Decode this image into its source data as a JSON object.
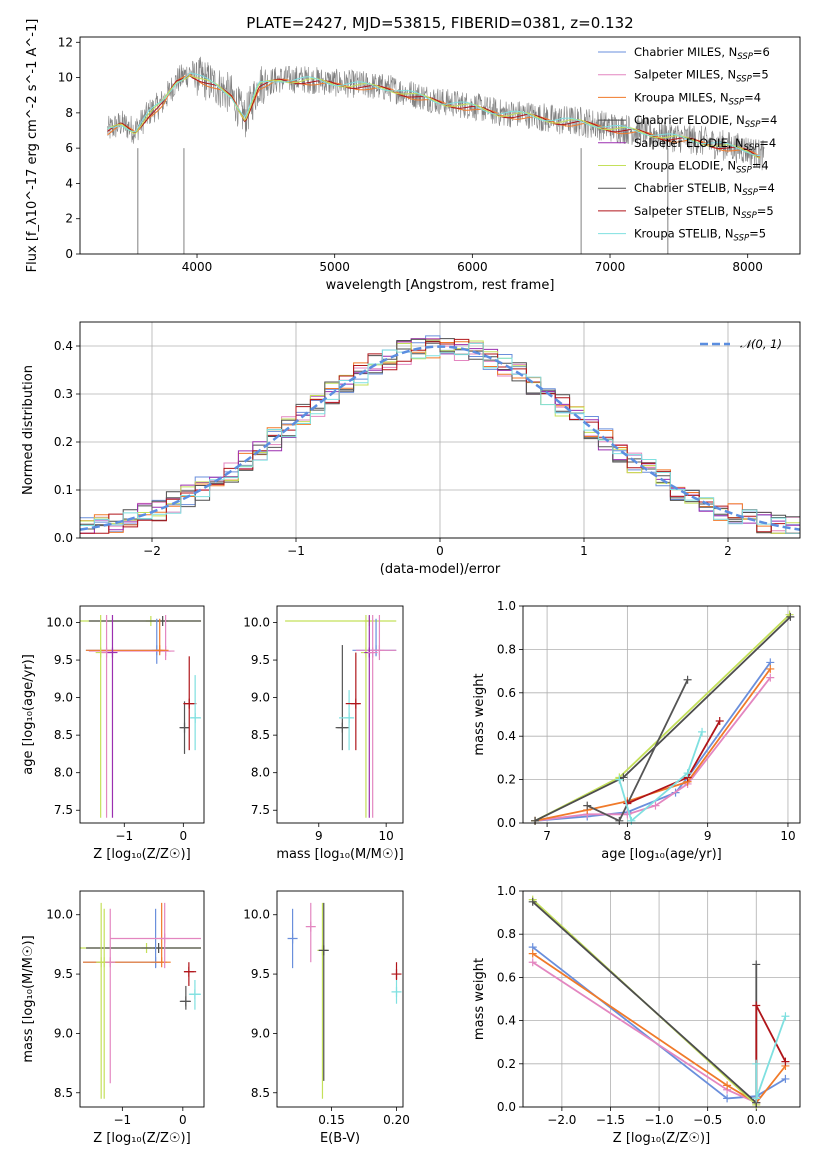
{
  "colors": {
    "chabrier_miles": "#6a8fdc",
    "salpeter_miles": "#e386c0",
    "kroupa_miles": "#f07a2a",
    "chabrier_elodie": "#4d4d4d",
    "salpeter_elodie": "#9b2fb0",
    "kroupa_elodie": "#c4e05a",
    "chabrier_stelib": "#555555",
    "salpeter_stelib": "#b0151a",
    "kroupa_stelib": "#7fe0e0",
    "data_spectrum": "#808080",
    "normal_curve": "#5b8ee0",
    "grid": "#b0b0b0"
  },
  "chart_data": [
    {
      "id": "spectrum",
      "type": "line",
      "title": "PLATE=2427, MJD=53815, FIBERID=0381, z=0.132",
      "xlabel": "wavelength [Angstrom, rest frame]",
      "ylabel": "Flux [f_λ10^-17 erg cm^-2 s^-1 A^-1]",
      "xlim": [
        3150,
        8380
      ],
      "ylim": [
        0,
        12.3
      ],
      "xticks": [
        4000,
        5000,
        6000,
        7000,
        8000
      ],
      "yticks": [
        0,
        2,
        4,
        6,
        8,
        10,
        12
      ],
      "grid": false,
      "legend_position": "top-right",
      "legend": [
        {
          "base": "Chabrier MILES, N",
          "sub": "SSP",
          "tail": "=6",
          "color_key": "chabrier_miles"
        },
        {
          "base": "Salpeter MILES, N",
          "sub": "SSP",
          "tail": "=5",
          "color_key": "salpeter_miles"
        },
        {
          "base": "Kroupa MILES, N",
          "sub": "SSP",
          "tail": "=4",
          "color_key": "kroupa_miles"
        },
        {
          "base": "Chabrier ELODIE, N",
          "sub": "SSP",
          "tail": "=4",
          "color_key": "chabrier_elodie"
        },
        {
          "base": "Salpeter ELODIE, N",
          "sub": "SSP",
          "tail": "=4",
          "color_key": "salpeter_elodie"
        },
        {
          "base": "Kroupa ELODIE, N",
          "sub": "SSP",
          "tail": "=4",
          "color_key": "kroupa_elodie"
        },
        {
          "base": "Chabrier STELIB, N",
          "sub": "SSP",
          "tail": "=4",
          "color_key": "chabrier_stelib"
        },
        {
          "base": "Salpeter STELIB, N",
          "sub": "SSP",
          "tail": "=5",
          "color_key": "salpeter_stelib"
        },
        {
          "base": "Kroupa STELIB, N",
          "sub": "SSP",
          "tail": "=5",
          "color_key": "kroupa_stelib"
        }
      ],
      "data_envelope": {
        "x": [
          3350,
          3450,
          3550,
          3650,
          3750,
          3850,
          3950,
          4050,
          4150,
          4250,
          4350,
          4450,
          4600,
          4800,
          5000,
          5200,
          5400,
          5600,
          5800,
          6000,
          6200,
          6400,
          6600,
          6800,
          7000,
          7200,
          7400,
          7600,
          7800,
          8000,
          8100
        ],
        "y": [
          7.0,
          7.4,
          7.0,
          8.0,
          8.6,
          9.8,
          10.3,
          9.9,
          9.5,
          9.0,
          7.7,
          9.6,
          9.9,
          9.9,
          9.7,
          9.6,
          9.4,
          9.0,
          8.6,
          8.4,
          8.0,
          7.9,
          7.6,
          7.5,
          7.2,
          7.0,
          6.7,
          6.5,
          6.2,
          5.9,
          5.6
        ]
      }
    },
    {
      "id": "residual-histogram",
      "type": "bar",
      "xlabel": "(data-model)/error",
      "ylabel": "Normed distribution",
      "xlim": [
        -2.5,
        2.5
      ],
      "ylim": [
        0,
        0.45
      ],
      "xticks": [
        -2,
        -1,
        0,
        1,
        2
      ],
      "yticks": [
        0.0,
        0.1,
        0.2,
        0.3,
        0.4
      ],
      "grid": true,
      "legend_position": "top-right",
      "legend": [
        {
          "label": "𝒩(0, 1)",
          "style": "dashed",
          "color_key": "normal_curve"
        }
      ],
      "bin_width": 0.1,
      "normal_curve": {
        "mean": 0,
        "sigma": 1
      }
    },
    {
      "id": "age-vs-z",
      "type": "scatter",
      "xlabel": "Z [log₁₀(Z/Z☉)]",
      "ylabel": "age  [log₁₀(age/yr)]",
      "xlim": [
        -1.75,
        0.35
      ],
      "ylim": [
        7.33,
        10.22
      ],
      "xticks": [
        -1,
        0
      ],
      "yticks": [
        7.5,
        8.0,
        8.5,
        9.0,
        9.5,
        10.0
      ],
      "grid": false,
      "points": [
        {
          "x": -0.55,
          "y": 10.02,
          "xlo": -1.75,
          "xhi": 0.3,
          "ylo": 10.02,
          "yhi": 10.02,
          "color_key": "kroupa_elodie"
        },
        {
          "x": -0.35,
          "y": 10.02,
          "xlo": -1.6,
          "xhi": 0.3,
          "ylo": 10.02,
          "yhi": 10.02,
          "color_key": "chabrier_elodie"
        },
        {
          "x": -0.45,
          "y": 9.63,
          "xlo": -1.65,
          "xhi": -0.35,
          "ylo": 9.45,
          "yhi": 10.05,
          "color_key": "chabrier_miles"
        },
        {
          "x": -0.3,
          "y": 9.62,
          "xlo": -1.6,
          "xhi": -0.15,
          "ylo": 9.5,
          "yhi": 10.1,
          "color_key": "salpeter_miles"
        },
        {
          "x": -0.4,
          "y": 9.63,
          "xlo": -1.65,
          "xhi": -0.25,
          "ylo": 9.6,
          "yhi": 10.05,
          "color_key": "kroupa_miles"
        },
        {
          "x": -1.4,
          "y": 9.6,
          "xlo": -1.4,
          "xhi": -1.4,
          "ylo": 7.4,
          "yhi": 10.1,
          "color_key": "kroupa_elodie"
        },
        {
          "x": -1.3,
          "y": 9.6,
          "xlo": -1.3,
          "xhi": -1.3,
          "ylo": 7.4,
          "yhi": 10.1,
          "color_key": "salpeter_miles"
        },
        {
          "x": -1.2,
          "y": 9.6,
          "xlo": -1.2,
          "xhi": -1.2,
          "ylo": 7.4,
          "yhi": 10.1,
          "color_key": "salpeter_elodie"
        },
        {
          "x": 0.02,
          "y": 8.6,
          "xlo": -0.05,
          "xhi": 0.1,
          "ylo": 8.25,
          "yhi": 8.95,
          "color_key": "chabrier_stelib"
        },
        {
          "x": 0.1,
          "y": 8.92,
          "xlo": 0.0,
          "xhi": 0.22,
          "ylo": 8.3,
          "yhi": 9.55,
          "color_key": "salpeter_stelib"
        },
        {
          "x": 0.2,
          "y": 8.73,
          "xlo": 0.12,
          "xhi": 0.3,
          "ylo": 8.3,
          "yhi": 9.3,
          "color_key": "kroupa_stelib"
        }
      ]
    },
    {
      "id": "age-vs-mass",
      "type": "scatter",
      "xlabel": "mass [log₁₀(M/M☉)]",
      "ylabel": "",
      "xlim": [
        8.38,
        10.25
      ],
      "ylim": [
        7.33,
        10.22
      ],
      "xticks": [
        9,
        10
      ],
      "yticks": [
        7.5,
        8.0,
        8.5,
        9.0,
        9.5,
        10.0
      ],
      "grid": false,
      "points": [
        {
          "x": 9.75,
          "y": 10.02,
          "xlo": 8.5,
          "xhi": 10.15,
          "ylo": 10.02,
          "yhi": 10.02,
          "color_key": "kroupa_elodie"
        },
        {
          "x": 9.85,
          "y": 9.63,
          "xlo": 9.5,
          "xhi": 10.15,
          "ylo": 9.55,
          "yhi": 10.05,
          "color_key": "chabrier_miles"
        },
        {
          "x": 9.9,
          "y": 9.63,
          "xlo": 9.55,
          "xhi": 10.15,
          "ylo": 9.5,
          "yhi": 10.1,
          "color_key": "salpeter_miles"
        },
        {
          "x": 9.35,
          "y": 8.6,
          "xlo": 9.25,
          "xhi": 9.45,
          "ylo": 8.3,
          "yhi": 9.7,
          "color_key": "chabrier_stelib"
        },
        {
          "x": 9.45,
          "y": 8.73,
          "xlo": 9.3,
          "xhi": 9.5,
          "ylo": 8.3,
          "yhi": 9.1,
          "color_key": "kroupa_stelib"
        },
        {
          "x": 9.55,
          "y": 8.92,
          "xlo": 9.4,
          "xhi": 9.6,
          "ylo": 8.3,
          "yhi": 9.6,
          "color_key": "salpeter_stelib"
        },
        {
          "x": 9.7,
          "y": 9.6,
          "xlo": 9.7,
          "xhi": 9.7,
          "ylo": 7.4,
          "yhi": 10.1,
          "color_key": "kroupa_elodie"
        },
        {
          "x": 9.75,
          "y": 9.6,
          "xlo": 9.75,
          "xhi": 9.75,
          "ylo": 7.4,
          "yhi": 10.1,
          "color_key": "salpeter_elodie"
        },
        {
          "x": 9.8,
          "y": 9.6,
          "xlo": 9.8,
          "xhi": 9.8,
          "ylo": 7.4,
          "yhi": 10.1,
          "color_key": "salpeter_miles"
        }
      ]
    },
    {
      "id": "weight-vs-age",
      "type": "line",
      "xlabel": "age  [log₁₀(age/yr)]",
      "ylabel": "mass weight",
      "xlim": [
        6.7,
        10.15
      ],
      "ylim": [
        0,
        1.0
      ],
      "xticks": [
        7,
        8,
        9,
        10
      ],
      "yticks": [
        0.0,
        0.2,
        0.4,
        0.6,
        0.8,
        1.0
      ],
      "grid": true,
      "series": [
        {
          "color_key": "chabrier_miles",
          "x": [
            6.85,
            7.5,
            8.0,
            8.6,
            8.75,
            9.78
          ],
          "y": [
            0.01,
            0.03,
            0.05,
            0.14,
            0.21,
            0.74
          ]
        },
        {
          "color_key": "salpeter_miles",
          "x": [
            6.85,
            7.5,
            8.0,
            8.35,
            8.75,
            9.78
          ],
          "y": [
            0.01,
            0.04,
            0.04,
            0.08,
            0.18,
            0.67
          ]
        },
        {
          "color_key": "kroupa_miles",
          "x": [
            6.85,
            7.5,
            8.0,
            8.75,
            9.78
          ],
          "y": [
            0.01,
            0.06,
            0.1,
            0.19,
            0.71
          ]
        },
        {
          "color_key": "kroupa_elodie",
          "x": [
            6.85,
            7.9,
            10.02
          ],
          "y": [
            0.01,
            0.21,
            0.96
          ]
        },
        {
          "color_key": "chabrier_elodie",
          "x": [
            6.85,
            7.95,
            10.03
          ],
          "y": [
            0.01,
            0.21,
            0.95
          ]
        },
        {
          "color_key": "chabrier_stelib",
          "x": [
            7.5,
            7.9,
            8.75
          ],
          "y": [
            0.08,
            0.01,
            0.66
          ]
        },
        {
          "color_key": "salpeter_stelib",
          "x": [
            8.0,
            8.75,
            9.15
          ],
          "y": [
            0.09,
            0.21,
            0.47
          ]
        },
        {
          "color_key": "kroupa_stelib",
          "x": [
            7.9,
            8.05,
            8.75,
            8.93
          ],
          "y": [
            0.2,
            0.01,
            0.23,
            0.42
          ]
        }
      ]
    },
    {
      "id": "mass-vs-z",
      "type": "scatter",
      "xlabel": "Z [log₁₀(Z/Z☉)]",
      "ylabel": "mass [log₁₀(M/M☉)]",
      "xlim": [
        -1.7,
        0.35
      ],
      "ylim": [
        8.38,
        10.2
      ],
      "xticks": [
        -1,
        0
      ],
      "yticks": [
        8.5,
        9.0,
        9.5,
        10.0
      ],
      "grid": false,
      "points": [
        {
          "x": -0.6,
          "y": 9.72,
          "xlo": -1.7,
          "xhi": 0.3,
          "ylo": 9.72,
          "yhi": 9.72,
          "color_key": "kroupa_elodie"
        },
        {
          "x": -0.4,
          "y": 9.72,
          "xlo": -1.6,
          "xhi": 0.3,
          "ylo": 9.72,
          "yhi": 9.72,
          "color_key": "chabrier_elodie"
        },
        {
          "x": -0.45,
          "y": 9.6,
          "xlo": -1.65,
          "xhi": -0.3,
          "ylo": 9.55,
          "yhi": 10.05,
          "color_key": "chabrier_miles"
        },
        {
          "x": -0.35,
          "y": 9.6,
          "xlo": -1.65,
          "xhi": -0.2,
          "ylo": 9.6,
          "yhi": 10.1,
          "color_key": "kroupa_miles"
        },
        {
          "x": -0.3,
          "y": 9.8,
          "xlo": -1.2,
          "xhi": 0.3,
          "ylo": 9.55,
          "yhi": 10.1,
          "color_key": "salpeter_miles"
        },
        {
          "x": -1.35,
          "y": 9.6,
          "xlo": -1.35,
          "xhi": -1.35,
          "ylo": 8.45,
          "yhi": 10.1,
          "color_key": "kroupa_elodie"
        },
        {
          "x": -1.3,
          "y": 9.6,
          "xlo": -1.3,
          "xhi": -1.3,
          "ylo": 8.45,
          "yhi": 10.05,
          "color_key": "kroupa_elodie"
        },
        {
          "x": -1.2,
          "y": 9.6,
          "xlo": -1.2,
          "xhi": -1.2,
          "ylo": 8.58,
          "yhi": 10.05,
          "color_key": "salpeter_miles"
        },
        {
          "x": 0.05,
          "y": 9.27,
          "xlo": -0.05,
          "xhi": 0.12,
          "ylo": 9.2,
          "yhi": 9.4,
          "color_key": "chabrier_stelib"
        },
        {
          "x": 0.1,
          "y": 9.52,
          "xlo": 0.02,
          "xhi": 0.22,
          "ylo": 9.4,
          "yhi": 9.6,
          "color_key": "salpeter_stelib"
        },
        {
          "x": 0.2,
          "y": 9.33,
          "xlo": 0.1,
          "xhi": 0.3,
          "ylo": 9.2,
          "yhi": 9.45,
          "color_key": "kroupa_stelib"
        }
      ]
    },
    {
      "id": "mass-vs-ebv",
      "type": "scatter",
      "xlabel": "E(B-V)",
      "ylabel": "",
      "xlim": [
        0.108,
        0.205
      ],
      "ylim": [
        8.38,
        10.2
      ],
      "xticks": [
        0.15,
        0.2
      ],
      "xtick_labels": [
        "0.15",
        "0.20"
      ],
      "yticks": [
        8.5,
        9.0,
        9.5,
        10.0
      ],
      "grid": false,
      "points": [
        {
          "x": 0.12,
          "y": 9.8,
          "xlo": 0.12,
          "xhi": 0.12,
          "ylo": 9.55,
          "yhi": 10.05,
          "color_key": "chabrier_miles"
        },
        {
          "x": 0.134,
          "y": 9.9,
          "xlo": 0.134,
          "xhi": 0.134,
          "ylo": 9.6,
          "yhi": 10.1,
          "color_key": "salpeter_miles"
        },
        {
          "x": 0.143,
          "y": 9.7,
          "xlo": 0.143,
          "xhi": 0.143,
          "ylo": 8.45,
          "yhi": 10.1,
          "color_key": "kroupa_elodie"
        },
        {
          "x": 0.144,
          "y": 9.7,
          "xlo": 0.144,
          "xhi": 0.144,
          "ylo": 8.6,
          "yhi": 10.1,
          "color_key": "chabrier_elodie"
        },
        {
          "x": 0.2,
          "y": 9.5,
          "xlo": 0.2,
          "xhi": 0.2,
          "ylo": 9.45,
          "yhi": 9.6,
          "color_key": "salpeter_stelib"
        },
        {
          "x": 0.2,
          "y": 9.35,
          "xlo": 0.2,
          "xhi": 0.2,
          "ylo": 9.25,
          "yhi": 9.45,
          "color_key": "kroupa_stelib"
        }
      ]
    },
    {
      "id": "weight-vs-z",
      "type": "line",
      "xlabel": "Z [log₁₀(Z/Z☉)]",
      "ylabel": "mass weight",
      "xlim": [
        -2.4,
        0.45
      ],
      "ylim": [
        0,
        1.0
      ],
      "xticks": [
        -2.0,
        -1.5,
        -1.0,
        -0.5,
        0.0
      ],
      "xtick_labels": [
        "−2.0",
        "−1.5",
        "−1.0",
        "−0.5",
        "0.0"
      ],
      "yticks": [
        0.0,
        0.2,
        0.4,
        0.6,
        0.8,
        1.0
      ],
      "grid": true,
      "series": [
        {
          "color_key": "chabrier_miles",
          "x": [
            -2.3,
            -0.3,
            0.0,
            0.3
          ],
          "y": [
            0.74,
            0.04,
            0.05,
            0.13
          ]
        },
        {
          "color_key": "salpeter_miles",
          "x": [
            -2.3,
            -0.3,
            0.0
          ],
          "y": [
            0.67,
            0.08,
            0.02
          ]
        },
        {
          "color_key": "kroupa_miles",
          "x": [
            -2.3,
            -0.3,
            0.0,
            0.3
          ],
          "y": [
            0.71,
            0.1,
            0.02,
            0.19
          ]
        },
        {
          "color_key": "kroupa_elodie",
          "x": [
            -2.3,
            0.0
          ],
          "y": [
            0.96,
            0.01
          ]
        },
        {
          "color_key": "chabrier_elodie",
          "x": [
            -2.3,
            0.0
          ],
          "y": [
            0.95,
            0.02
          ]
        },
        {
          "color_key": "chabrier_stelib",
          "x": [
            0.0,
            0.0
          ],
          "y": [
            0.66,
            0.02
          ]
        },
        {
          "color_key": "salpeter_stelib",
          "x": [
            0.0,
            0.0,
            0.3
          ],
          "y": [
            0.04,
            0.47,
            0.21
          ]
        },
        {
          "color_key": "kroupa_stelib",
          "x": [
            0.0,
            0.0,
            0.3
          ],
          "y": [
            0.2,
            0.04,
            0.42
          ]
        }
      ]
    }
  ]
}
